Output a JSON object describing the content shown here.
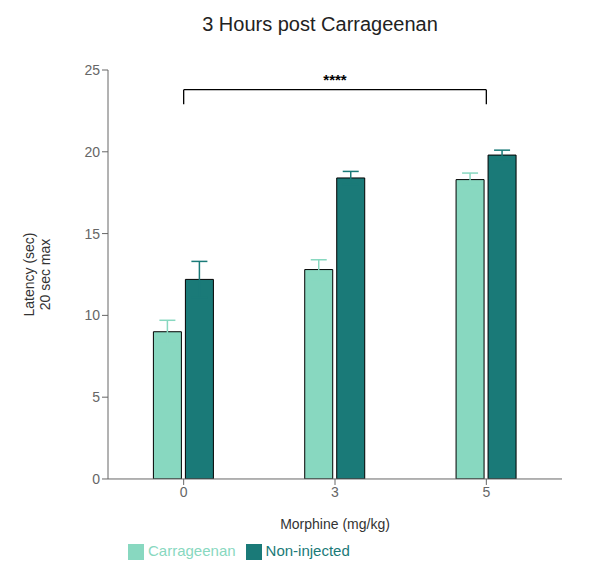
{
  "chart_data": {
    "type": "bar",
    "title": "3 Hours post Carrageenan",
    "xlabel": "Morphine (mg/kg)",
    "ylabel": "Latency (sec)\n20 sec max",
    "categories": [
      "0",
      "3",
      "5"
    ],
    "series": [
      {
        "name": "Carrageenan",
        "color": "#88D8C0",
        "values": [
          9.0,
          12.8,
          18.3
        ],
        "errors": [
          0.7,
          0.6,
          0.4
        ]
      },
      {
        "name": "Non-injected",
        "color": "#1A7A78",
        "values": [
          12.2,
          18.4,
          19.8
        ],
        "errors": [
          1.1,
          0.4,
          0.3
        ]
      }
    ],
    "ylim": [
      0,
      25
    ],
    "yticks": [
      0,
      5,
      10,
      15,
      20,
      25
    ],
    "grid": false,
    "legend": "bottom",
    "annotations": [
      {
        "text": "****",
        "from": "0",
        "to": "5"
      }
    ]
  }
}
